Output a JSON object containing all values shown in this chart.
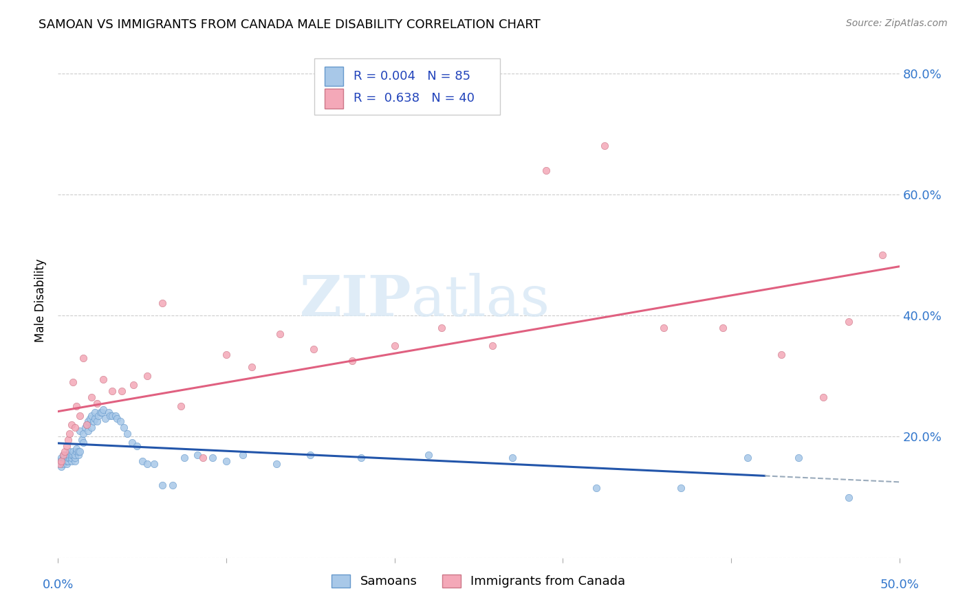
{
  "title": "SAMOAN VS IMMIGRANTS FROM CANADA MALE DISABILITY CORRELATION CHART",
  "source": "Source: ZipAtlas.com",
  "ylabel": "Male Disability",
  "xlim": [
    0.0,
    0.5
  ],
  "ylim": [
    0.0,
    0.85
  ],
  "legend": {
    "R_blue": "0.004",
    "N_blue": "85",
    "R_pink": "0.638",
    "N_pink": "40",
    "label_blue": "Samoans",
    "label_pink": "Immigrants from Canada"
  },
  "blue_color": "#A8C8E8",
  "pink_color": "#F4A8B8",
  "line_blue_color": "#2255AA",
  "line_pink_color": "#E06080",
  "line_blue_dash_color": "#99AABB",
  "legend_text_color": "#2244BB",
  "samoans_x": [
    0.001,
    0.001,
    0.002,
    0.002,
    0.002,
    0.003,
    0.003,
    0.003,
    0.003,
    0.004,
    0.004,
    0.004,
    0.005,
    0.005,
    0.005,
    0.005,
    0.006,
    0.006,
    0.006,
    0.007,
    0.007,
    0.007,
    0.008,
    0.008,
    0.008,
    0.009,
    0.009,
    0.01,
    0.01,
    0.01,
    0.011,
    0.011,
    0.012,
    0.012,
    0.013,
    0.013,
    0.014,
    0.015,
    0.015,
    0.016,
    0.017,
    0.018,
    0.018,
    0.019,
    0.02,
    0.02,
    0.021,
    0.022,
    0.022,
    0.023,
    0.024,
    0.025,
    0.026,
    0.027,
    0.028,
    0.03,
    0.031,
    0.032,
    0.034,
    0.035,
    0.037,
    0.039,
    0.041,
    0.044,
    0.047,
    0.05,
    0.053,
    0.057,
    0.062,
    0.068,
    0.075,
    0.083,
    0.092,
    0.1,
    0.11,
    0.13,
    0.15,
    0.18,
    0.22,
    0.27,
    0.32,
    0.37,
    0.41,
    0.44,
    0.47
  ],
  "samoans_y": [
    0.155,
    0.16,
    0.15,
    0.16,
    0.165,
    0.155,
    0.16,
    0.165,
    0.17,
    0.16,
    0.165,
    0.17,
    0.155,
    0.16,
    0.165,
    0.17,
    0.16,
    0.165,
    0.17,
    0.165,
    0.17,
    0.175,
    0.16,
    0.165,
    0.17,
    0.17,
    0.175,
    0.16,
    0.165,
    0.17,
    0.175,
    0.18,
    0.17,
    0.175,
    0.175,
    0.21,
    0.195,
    0.19,
    0.205,
    0.215,
    0.22,
    0.21,
    0.225,
    0.23,
    0.215,
    0.235,
    0.225,
    0.23,
    0.24,
    0.225,
    0.235,
    0.24,
    0.24,
    0.245,
    0.23,
    0.24,
    0.235,
    0.235,
    0.235,
    0.23,
    0.225,
    0.215,
    0.205,
    0.19,
    0.185,
    0.16,
    0.155,
    0.155,
    0.12,
    0.12,
    0.165,
    0.17,
    0.165,
    0.16,
    0.17,
    0.155,
    0.17,
    0.165,
    0.17,
    0.165,
    0.115,
    0.115,
    0.165,
    0.165,
    0.1
  ],
  "canada_x": [
    0.001,
    0.002,
    0.003,
    0.004,
    0.005,
    0.006,
    0.007,
    0.008,
    0.009,
    0.01,
    0.011,
    0.013,
    0.015,
    0.017,
    0.02,
    0.023,
    0.027,
    0.032,
    0.038,
    0.045,
    0.053,
    0.062,
    0.073,
    0.086,
    0.1,
    0.115,
    0.132,
    0.152,
    0.175,
    0.2,
    0.228,
    0.258,
    0.29,
    0.325,
    0.36,
    0.395,
    0.43,
    0.455,
    0.47,
    0.49
  ],
  "canada_y": [
    0.155,
    0.16,
    0.17,
    0.175,
    0.185,
    0.195,
    0.205,
    0.22,
    0.29,
    0.215,
    0.25,
    0.235,
    0.33,
    0.22,
    0.265,
    0.255,
    0.295,
    0.275,
    0.275,
    0.285,
    0.3,
    0.42,
    0.25,
    0.165,
    0.335,
    0.315,
    0.37,
    0.345,
    0.325,
    0.35,
    0.38,
    0.35,
    0.64,
    0.68,
    0.38,
    0.38,
    0.335,
    0.265,
    0.39,
    0.5
  ],
  "background_color": "#FFFFFF",
  "grid_color": "#CCCCCC"
}
